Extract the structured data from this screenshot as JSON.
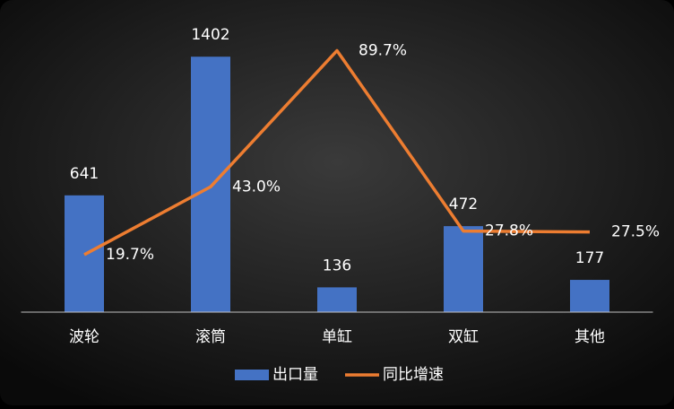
{
  "chart_data": {
    "type": "bar-line",
    "categories": [
      "波轮",
      "滚筒",
      "单缸",
      "双缸",
      "其他"
    ],
    "series": [
      {
        "name": "出口量",
        "type": "bar",
        "color": "#4472c4",
        "values": [
          641,
          1402,
          136,
          472,
          177
        ]
      },
      {
        "name": "同比增速",
        "type": "line",
        "axis": "y2",
        "color": "#ed7d31",
        "values": [
          19.7,
          43.0,
          89.7,
          27.8,
          27.5
        ],
        "value_labels": [
          "19.7%",
          "43.0%",
          "89.7%",
          "27.8%",
          "27.5%"
        ]
      }
    ],
    "ylim": [
      0,
      1600
    ],
    "y2lim": [
      0,
      100
    ],
    "legend": "bottom"
  }
}
